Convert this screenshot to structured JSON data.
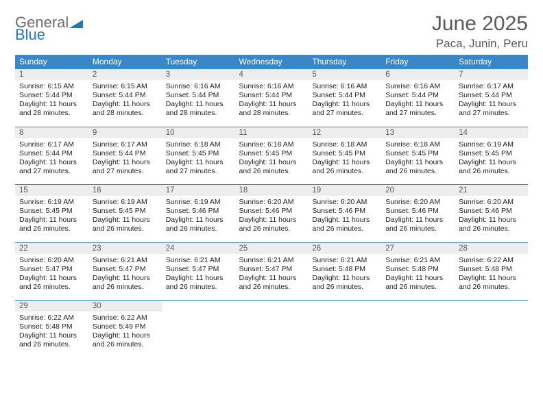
{
  "logo": {
    "line1": "General",
    "line2": "Blue",
    "color_gray": "#6d6d6d",
    "color_blue": "#2c75b5"
  },
  "title": "June 2025",
  "location": "Paca, Junin, Peru",
  "header_bg": "#3a87c7",
  "daynum_bg": "#ededed",
  "weekdays": [
    "Sunday",
    "Monday",
    "Tuesday",
    "Wednesday",
    "Thursday",
    "Friday",
    "Saturday"
  ],
  "weeks": [
    [
      {
        "n": "1",
        "sr": "6:15 AM",
        "ss": "5:44 PM",
        "dl": "11 hours and 28 minutes."
      },
      {
        "n": "2",
        "sr": "6:15 AM",
        "ss": "5:44 PM",
        "dl": "11 hours and 28 minutes."
      },
      {
        "n": "3",
        "sr": "6:16 AM",
        "ss": "5:44 PM",
        "dl": "11 hours and 28 minutes."
      },
      {
        "n": "4",
        "sr": "6:16 AM",
        "ss": "5:44 PM",
        "dl": "11 hours and 28 minutes."
      },
      {
        "n": "5",
        "sr": "6:16 AM",
        "ss": "5:44 PM",
        "dl": "11 hours and 27 minutes."
      },
      {
        "n": "6",
        "sr": "6:16 AM",
        "ss": "5:44 PM",
        "dl": "11 hours and 27 minutes."
      },
      {
        "n": "7",
        "sr": "6:17 AM",
        "ss": "5:44 PM",
        "dl": "11 hours and 27 minutes."
      }
    ],
    [
      {
        "n": "8",
        "sr": "6:17 AM",
        "ss": "5:44 PM",
        "dl": "11 hours and 27 minutes."
      },
      {
        "n": "9",
        "sr": "6:17 AM",
        "ss": "5:44 PM",
        "dl": "11 hours and 27 minutes."
      },
      {
        "n": "10",
        "sr": "6:18 AM",
        "ss": "5:45 PM",
        "dl": "11 hours and 27 minutes."
      },
      {
        "n": "11",
        "sr": "6:18 AM",
        "ss": "5:45 PM",
        "dl": "11 hours and 26 minutes."
      },
      {
        "n": "12",
        "sr": "6:18 AM",
        "ss": "5:45 PM",
        "dl": "11 hours and 26 minutes."
      },
      {
        "n": "13",
        "sr": "6:18 AM",
        "ss": "5:45 PM",
        "dl": "11 hours and 26 minutes."
      },
      {
        "n": "14",
        "sr": "6:19 AM",
        "ss": "5:45 PM",
        "dl": "11 hours and 26 minutes."
      }
    ],
    [
      {
        "n": "15",
        "sr": "6:19 AM",
        "ss": "5:45 PM",
        "dl": "11 hours and 26 minutes."
      },
      {
        "n": "16",
        "sr": "6:19 AM",
        "ss": "5:45 PM",
        "dl": "11 hours and 26 minutes."
      },
      {
        "n": "17",
        "sr": "6:19 AM",
        "ss": "5:46 PM",
        "dl": "11 hours and 26 minutes."
      },
      {
        "n": "18",
        "sr": "6:20 AM",
        "ss": "5:46 PM",
        "dl": "11 hours and 26 minutes."
      },
      {
        "n": "19",
        "sr": "6:20 AM",
        "ss": "5:46 PM",
        "dl": "11 hours and 26 minutes."
      },
      {
        "n": "20",
        "sr": "6:20 AM",
        "ss": "5:46 PM",
        "dl": "11 hours and 26 minutes."
      },
      {
        "n": "21",
        "sr": "6:20 AM",
        "ss": "5:46 PM",
        "dl": "11 hours and 26 minutes."
      }
    ],
    [
      {
        "n": "22",
        "sr": "6:20 AM",
        "ss": "5:47 PM",
        "dl": "11 hours and 26 minutes."
      },
      {
        "n": "23",
        "sr": "6:21 AM",
        "ss": "5:47 PM",
        "dl": "11 hours and 26 minutes."
      },
      {
        "n": "24",
        "sr": "6:21 AM",
        "ss": "5:47 PM",
        "dl": "11 hours and 26 minutes."
      },
      {
        "n": "25",
        "sr": "6:21 AM",
        "ss": "5:47 PM",
        "dl": "11 hours and 26 minutes."
      },
      {
        "n": "26",
        "sr": "6:21 AM",
        "ss": "5:48 PM",
        "dl": "11 hours and 26 minutes."
      },
      {
        "n": "27",
        "sr": "6:21 AM",
        "ss": "5:48 PM",
        "dl": "11 hours and 26 minutes."
      },
      {
        "n": "28",
        "sr": "6:22 AM",
        "ss": "5:48 PM",
        "dl": "11 hours and 26 minutes."
      }
    ],
    [
      {
        "n": "29",
        "sr": "6:22 AM",
        "ss": "5:48 PM",
        "dl": "11 hours and 26 minutes."
      },
      {
        "n": "30",
        "sr": "6:22 AM",
        "ss": "5:49 PM",
        "dl": "11 hours and 26 minutes."
      },
      null,
      null,
      null,
      null,
      null
    ]
  ],
  "labels": {
    "sunrise": "Sunrise: ",
    "sunset": "Sunset: ",
    "daylight": "Daylight: "
  }
}
